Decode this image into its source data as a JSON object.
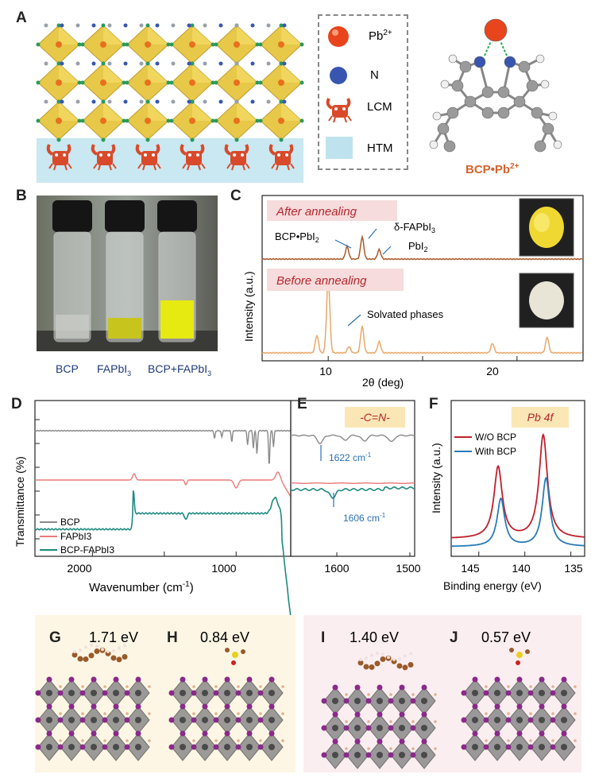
{
  "panels": {
    "A": {
      "label": "A",
      "legend": [
        {
          "label": "Pb2+",
          "main": "Pb",
          "sup": "2+",
          "color": "#e8451d",
          "icon": "pb-ion-icon"
        },
        {
          "label": "N",
          "main": "N",
          "sup": "",
          "color": "#3856b0",
          "icon": "nitrogen-icon"
        },
        {
          "label": "LCM",
          "main": "LCM",
          "sup": "",
          "color": "#d84a2a",
          "icon": "crab-icon"
        },
        {
          "label": "HTM",
          "main": "HTM",
          "sup": "",
          "color": "#bfe3ee",
          "icon": "htm-layer-icon"
        }
      ],
      "complex_label": "BCP•Pb2+",
      "complex_main": "BCP•Pb",
      "complex_sup": "2+"
    },
    "B": {
      "label": "B",
      "vials": [
        {
          "name": "BCP",
          "main": "BCP",
          "sub": "",
          "tail": ""
        },
        {
          "name": "FAPbI3",
          "main": "FAPbI",
          "sub": "3",
          "tail": ""
        },
        {
          "name": "BCP+FAPbI3",
          "main": "BCP+FAPbI",
          "sub": "3",
          "tail": ""
        }
      ]
    },
    "C": {
      "label": "C",
      "ylabel": "Intensity (a.u.)",
      "xlabel": "2θ (deg)",
      "xticks": [
        "10",
        "20"
      ],
      "after_label": "After annealing",
      "before_label": "Before annealing",
      "annotations": {
        "bcp_pbi2": "BCP•PbI2",
        "delta_fapbi3": "δ-FAPbI3",
        "pbi2": "PbI2",
        "solvated": "Solvated phases"
      }
    },
    "D": {
      "label": "D",
      "ylabel": "Transmittance (%)",
      "xlabel": "Wavenumber (cm-1)",
      "xticks": [
        "2000",
        "1000"
      ],
      "legend": [
        {
          "name": "BCP",
          "color": "#8a8a8a"
        },
        {
          "name": "FAPbI3",
          "color": "#e87a78"
        },
        {
          "name": "BCP-FAPbI3",
          "color": "#1d8a80"
        }
      ]
    },
    "E": {
      "label": "E",
      "tag": "-C=N-",
      "xticks": [
        "1600",
        "1500"
      ],
      "peak_top": "1622 cm-1",
      "peak_bottom": "1606 cm-1"
    },
    "F": {
      "label": "F",
      "tag": "Pb 4f",
      "ylabel": "Intensity (a.u.)",
      "xlabel": "Binding energy (eV)",
      "xticks": [
        "145",
        "140",
        "135"
      ],
      "legend": [
        {
          "name": "W/O BCP",
          "color": "#c0202c"
        },
        {
          "name": "With BCP",
          "color": "#2a7bb5"
        }
      ]
    },
    "G": {
      "label": "G",
      "energy": "1.71 eV"
    },
    "H": {
      "label": "H",
      "energy": "0.84 eV"
    },
    "I": {
      "label": "I",
      "energy": "1.40 eV"
    },
    "J": {
      "label": "J",
      "energy": "0.57 eV"
    }
  },
  "colors": {
    "panel_gh_bg": "#fdf6e4",
    "panel_ij_bg": "#fbeef0",
    "after_tag_bg": "#f6dcdc",
    "after_text": "#b5262d",
    "xrd_after": "#a85a2a",
    "xrd_before": "#e8a868",
    "annot_arrow": "#2a6fb5",
    "octahedra": "#e6c43a"
  }
}
